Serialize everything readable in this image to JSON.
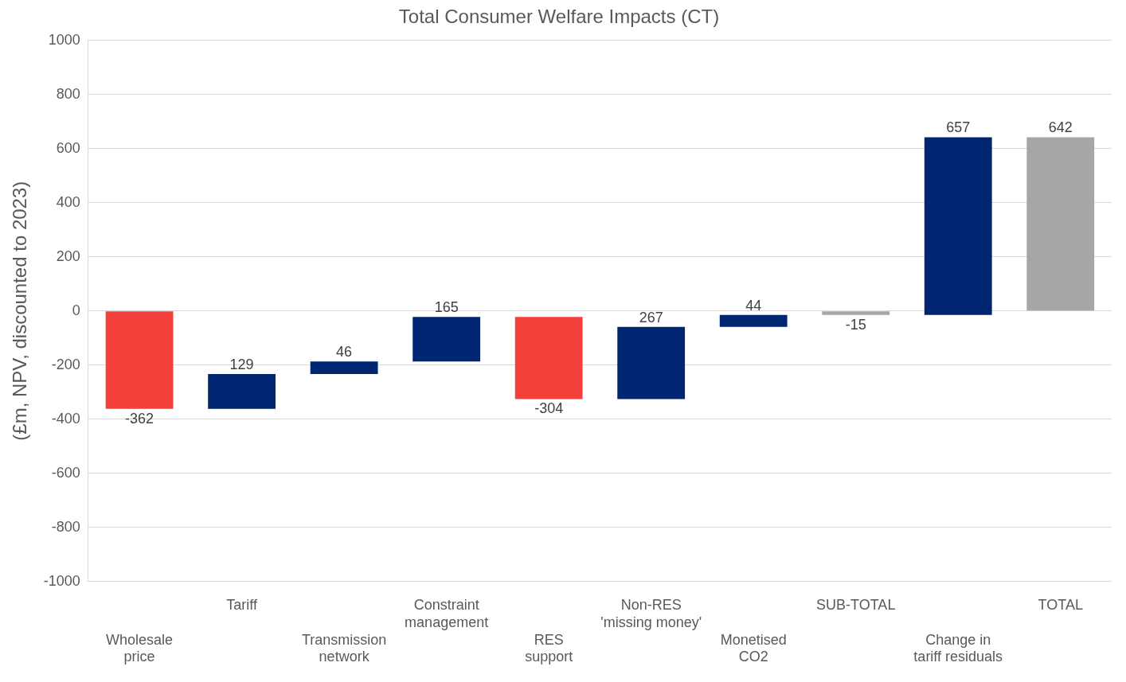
{
  "chart_data": {
    "type": "bar",
    "title": "Total Consumer Welfare Impacts (CT)",
    "ylabel": "(£m, NPV, discounted to 2023)",
    "categories": [
      "Wholesale\nprice",
      "Tariff",
      "Transmission\nnetwork",
      "Constraint\nmanagement",
      "RES\nsupport",
      "Non-RES\n'missing money'",
      "Monetised\nCO2",
      "SUB-TOTAL",
      "Change in\ntariff residuals",
      "TOTAL"
    ],
    "values": [
      -362,
      129,
      46,
      165,
      -304,
      267,
      44,
      -15,
      657,
      642
    ],
    "base": [
      0,
      -362,
      -233,
      -187,
      -22,
      -326,
      -59,
      0,
      -15,
      0
    ],
    "colors": [
      "#f5413b",
      "#002672",
      "#002672",
      "#002672",
      "#f5413b",
      "#002672",
      "#002672",
      "#a6a6a6",
      "#002672",
      "#a6a6a6"
    ],
    "ylim": [
      -1000,
      1000
    ],
    "yticks": [
      -1000,
      -800,
      -600,
      -400,
      -200,
      0,
      200,
      400,
      600,
      800,
      1000
    ],
    "grid": "y",
    "legend": false,
    "data_labels": true
  }
}
